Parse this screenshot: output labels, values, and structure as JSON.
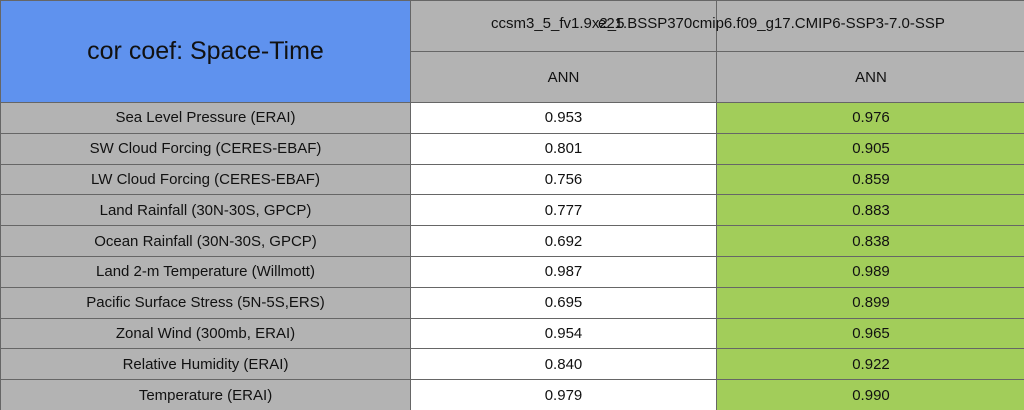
{
  "header": {
    "title": "cor coef: Space-Time"
  },
  "columns": [
    {
      "name": "ccsm3_5_fv1.9x2_5",
      "period": "ANN"
    },
    {
      "name": "e21.BSSP370cmip6.f09_g17.CMIP6-SSP3-7.0-SSP",
      "period": "ANN"
    }
  ],
  "rows": [
    {
      "label": "Sea Level Pressure (ERAI)",
      "values": [
        "0.953",
        "0.976"
      ]
    },
    {
      "label": "SW Cloud Forcing (CERES-EBAF)",
      "values": [
        "0.801",
        "0.905"
      ]
    },
    {
      "label": "LW Cloud Forcing (CERES-EBAF)",
      "values": [
        "0.756",
        "0.859"
      ]
    },
    {
      "label": "Land Rainfall (30N-30S, GPCP)",
      "values": [
        "0.777",
        "0.883"
      ]
    },
    {
      "label": "Ocean Rainfall (30N-30S, GPCP)",
      "values": [
        "0.692",
        "0.838"
      ]
    },
    {
      "label": "Land 2-m Temperature (Willmott)",
      "values": [
        "0.987",
        "0.989"
      ]
    },
    {
      "label": "Pacific Surface Stress (5N-5S,ERS)",
      "values": [
        "0.695",
        "0.899"
      ]
    },
    {
      "label": "Zonal Wind (300mb, ERAI)",
      "values": [
        "0.954",
        "0.965"
      ]
    },
    {
      "label": "Relative Humidity (ERAI)",
      "values": [
        "0.840",
        "0.922"
      ]
    },
    {
      "label": "Temperature (ERAI)",
      "values": [
        "0.979",
        "0.990"
      ]
    }
  ]
}
